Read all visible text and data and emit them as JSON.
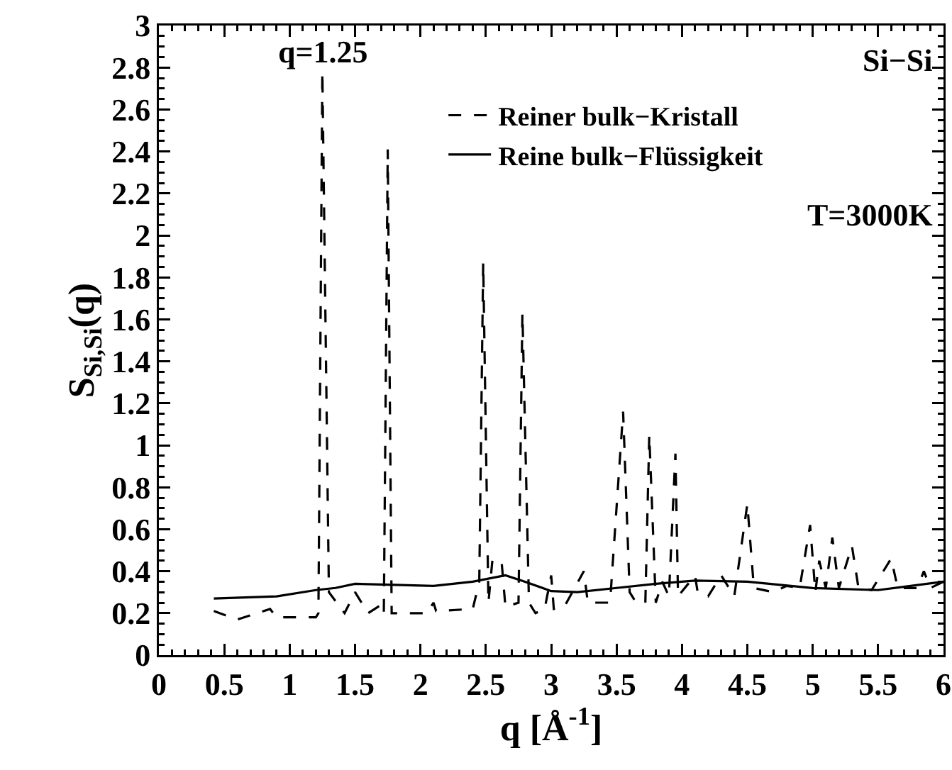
{
  "chart_data": {
    "type": "line",
    "xlabel": "q [Å$^{-1}$]",
    "ylabel": "S$_{Si,Si}$(q)",
    "xlim": [
      0,
      6
    ],
    "xticks": [
      0,
      0.5,
      1,
      1.5,
      2,
      2.5,
      3,
      3.5,
      4,
      4.5,
      5,
      5.5,
      6
    ],
    "ylim": [
      0,
      3
    ],
    "yticks": [
      0,
      0.2,
      0.4,
      0.6,
      0.8,
      1,
      1.2,
      1.4,
      1.6,
      1.8,
      2,
      2.2,
      2.4,
      2.6,
      2.8,
      3
    ],
    "grid": false,
    "legend": "top right",
    "marker": "none",
    "annotations": [
      {
        "text": "q=1.25",
        "x": 1.25,
        "y": 2.78
      },
      "Si−Si",
      "T=3000K"
    ],
    "series": [
      {
        "name": "Reiner bulk−Kristall",
        "color": "#000000",
        "line_style": "dashed",
        "x": [
          0.42,
          0.6,
          0.85,
          0.9,
          1.2,
          1.22,
          1.25,
          1.3,
          1.42,
          1.5,
          1.6,
          1.7,
          1.72,
          1.75,
          1.78,
          2.05,
          2.1,
          2.12,
          2.4,
          2.45,
          2.48,
          2.52,
          2.55,
          2.62,
          2.65,
          2.75,
          2.78,
          2.83,
          2.88,
          2.95,
          3.0,
          3.02,
          3.1,
          3.25,
          3.28,
          3.45,
          3.55,
          3.6,
          3.65,
          3.72,
          3.75,
          3.8,
          3.85,
          3.9,
          3.95,
          3.97,
          4.1,
          4.12,
          4.2,
          4.3,
          4.4,
          4.5,
          4.55,
          4.7,
          4.8,
          4.9,
          4.98,
          5.02,
          5.05,
          5.1,
          5.15,
          5.2,
          5.3,
          5.35,
          5.45,
          5.6,
          5.65,
          5.8,
          5.85,
          5.9,
          6.0
        ],
        "values": [
          0.21,
          0.17,
          0.22,
          0.18,
          0.18,
          0.2,
          2.78,
          0.3,
          0.2,
          0.3,
          0.2,
          0.24,
          0.2,
          2.41,
          0.2,
          0.2,
          0.25,
          0.21,
          0.22,
          0.35,
          1.87,
          0.25,
          0.45,
          0.45,
          0.23,
          0.25,
          1.63,
          0.25,
          0.2,
          0.22,
          0.38,
          0.22,
          0.23,
          0.4,
          0.25,
          0.25,
          1.16,
          0.3,
          0.25,
          0.25,
          1.05,
          0.25,
          0.35,
          0.28,
          0.96,
          0.28,
          0.38,
          0.3,
          0.28,
          0.38,
          0.28,
          0.72,
          0.32,
          0.3,
          0.33,
          0.32,
          0.62,
          0.3,
          0.45,
          0.32,
          0.56,
          0.32,
          0.52,
          0.32,
          0.31,
          0.46,
          0.32,
          0.32,
          0.4,
          0.32,
          0.35
        ]
      },
      {
        "name": "Reine bulk−Flüssigkeit",
        "color": "#000000",
        "line_style": "solid",
        "x": [
          0.42,
          0.9,
          1.2,
          1.35,
          1.5,
          1.8,
          2.1,
          2.4,
          2.65,
          2.8,
          3.0,
          3.2,
          3.5,
          3.8,
          4.1,
          4.5,
          5.0,
          5.5,
          6.0
        ],
        "values": [
          0.27,
          0.28,
          0.31,
          0.32,
          0.34,
          0.335,
          0.33,
          0.35,
          0.38,
          0.35,
          0.305,
          0.3,
          0.32,
          0.34,
          0.355,
          0.35,
          0.32,
          0.31,
          0.35
        ]
      }
    ]
  }
}
